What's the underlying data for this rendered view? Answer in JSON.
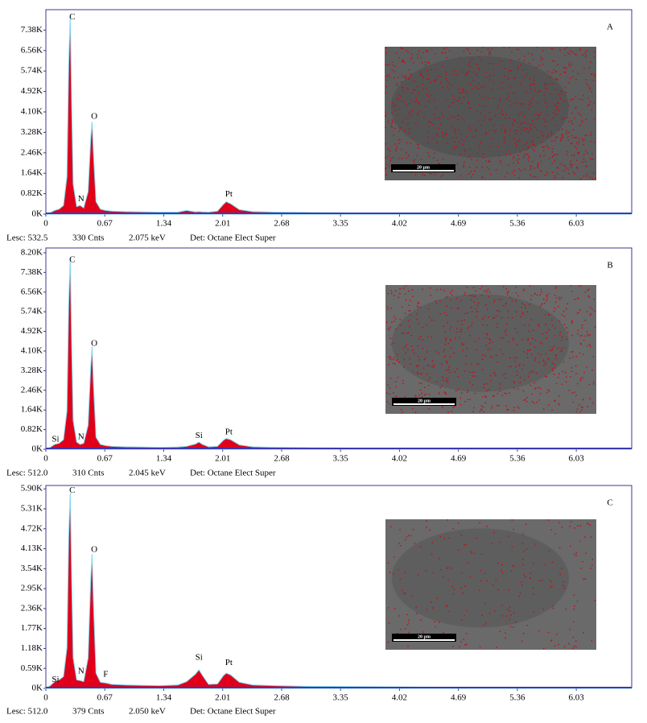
{
  "chart_data": [
    {
      "type": "area",
      "panel_label": "A",
      "xlim": [
        0,
        6.66
      ],
      "xticks": [
        0,
        0.67,
        1.34,
        2.01,
        2.68,
        3.35,
        4.02,
        4.69,
        5.36,
        6.03
      ],
      "ylim": [
        0,
        8200
      ],
      "yticks": [
        {
          "value": 0,
          "label": "0K"
        },
        {
          "value": 820,
          "label": "0.82K"
        },
        {
          "value": 1640,
          "label": "1.64K"
        },
        {
          "value": 2460,
          "label": "2.46K"
        },
        {
          "value": 3280,
          "label": "3.28K"
        },
        {
          "value": 4100,
          "label": "4.10K"
        },
        {
          "value": 4920,
          "label": "4.92K"
        },
        {
          "value": 5740,
          "label": "5.74K"
        },
        {
          "value": 6560,
          "label": "6.56K"
        },
        {
          "value": 7380,
          "label": "7.38K"
        }
      ],
      "series": [
        {
          "color": "#e0001a",
          "x": [
            0,
            0.05,
            0.1,
            0.15,
            0.2,
            0.24,
            0.26,
            0.277,
            0.29,
            0.31,
            0.35,
            0.39,
            0.43,
            0.48,
            0.51,
            0.525,
            0.54,
            0.57,
            0.62,
            0.68,
            0.75,
            0.9,
            1.1,
            1.3,
            1.5,
            1.6,
            1.7,
            1.74,
            1.78,
            1.85,
            1.95,
            2.02,
            2.05,
            2.1,
            2.2,
            2.35,
            2.6,
            3,
            3.5,
            4,
            5,
            6,
            6.66
          ],
          "values": [
            0,
            60,
            150,
            200,
            350,
            1500,
            6000,
            7950,
            5000,
            1200,
            300,
            350,
            250,
            900,
            3000,
            3710,
            2500,
            500,
            200,
            150,
            120,
            100,
            90,
            80,
            80,
            150,
            90,
            100,
            90,
            80,
            120,
            400,
            500,
            420,
            180,
            100,
            80,
            60,
            50,
            40,
            30,
            20,
            10
          ]
        }
      ],
      "annotations": [
        {
          "text": "C",
          "x": 0.3,
          "y": 7900
        },
        {
          "text": "O",
          "x": 0.55,
          "y": 3900
        },
        {
          "text": "N",
          "x": 0.4,
          "y": 600
        },
        {
          "text": "Pt",
          "x": 2.08,
          "y": 800
        }
      ],
      "inset_scale_label": "20 µm",
      "footer": [
        "Lesc: 532.5",
        "330 Cnts",
        "2.075 keV",
        "Det: Octane Elect Super"
      ]
    },
    {
      "type": "area",
      "panel_label": "B",
      "xlim": [
        0,
        6.66
      ],
      "xticks": [
        0,
        0.67,
        1.34,
        2.01,
        2.68,
        3.35,
        4.02,
        4.69,
        5.36,
        6.03
      ],
      "ylim": [
        0,
        8400
      ],
      "yticks": [
        {
          "value": 0,
          "label": "0K"
        },
        {
          "value": 820,
          "label": "0.82K"
        },
        {
          "value": 1640,
          "label": "1.64K"
        },
        {
          "value": 2460,
          "label": "2.46K"
        },
        {
          "value": 3280,
          "label": "3.28K"
        },
        {
          "value": 4100,
          "label": "4.10K"
        },
        {
          "value": 4920,
          "label": "4.92K"
        },
        {
          "value": 5740,
          "label": "5.74K"
        },
        {
          "value": 6560,
          "label": "6.56K"
        },
        {
          "value": 7380,
          "label": "7.38K"
        },
        {
          "value": 8200,
          "label": "8.20K"
        }
      ],
      "series": [
        {
          "color": "#e0001a",
          "x": [
            0,
            0.05,
            0.1,
            0.15,
            0.2,
            0.24,
            0.26,
            0.277,
            0.29,
            0.31,
            0.35,
            0.39,
            0.43,
            0.48,
            0.51,
            0.525,
            0.54,
            0.57,
            0.62,
            0.68,
            0.75,
            0.9,
            1.1,
            1.3,
            1.5,
            1.6,
            1.7,
            1.74,
            1.78,
            1.85,
            1.95,
            2.02,
            2.05,
            2.1,
            2.2,
            2.35,
            2.6,
            3,
            3.5,
            4,
            5,
            6,
            6.66
          ],
          "values": [
            0,
            80,
            200,
            250,
            400,
            1600,
            6100,
            7970,
            5000,
            1200,
            300,
            200,
            250,
            1000,
            3400,
            4280,
            2800,
            500,
            200,
            150,
            120,
            100,
            90,
            80,
            90,
            120,
            220,
            300,
            200,
            100,
            120,
            380,
            450,
            400,
            180,
            100,
            80,
            60,
            50,
            40,
            30,
            20,
            10
          ]
        }
      ],
      "annotations": [
        {
          "text": "C",
          "x": 0.3,
          "y": 7900
        },
        {
          "text": "O",
          "x": 0.55,
          "y": 4400
        },
        {
          "text": "Si",
          "x": 0.11,
          "y": 400
        },
        {
          "text": "N",
          "x": 0.4,
          "y": 500
        },
        {
          "text": "Si",
          "x": 1.74,
          "y": 550
        },
        {
          "text": "Pt",
          "x": 2.08,
          "y": 700
        }
      ],
      "inset_scale_label": "20 µm",
      "footer": [
        "Lesc: 512.0",
        "310 Cnts",
        "2.045 keV",
        "Det: Octane Elect Super"
      ]
    },
    {
      "type": "area",
      "panel_label": "C",
      "xlim": [
        0,
        6.66
      ],
      "xticks": [
        0,
        0.67,
        1.34,
        2.01,
        2.68,
        3.35,
        4.02,
        4.69,
        5.36,
        6.03
      ],
      "ylim": [
        0,
        6000
      ],
      "yticks": [
        {
          "value": 0,
          "label": "0K"
        },
        {
          "value": 590,
          "label": "0.59K"
        },
        {
          "value": 1180,
          "label": "1.18K"
        },
        {
          "value": 1770,
          "label": "1.77K"
        },
        {
          "value": 2360,
          "label": "2.36K"
        },
        {
          "value": 2950,
          "label": "2.95K"
        },
        {
          "value": 3540,
          "label": "3.54K"
        },
        {
          "value": 4130,
          "label": "4.13K"
        },
        {
          "value": 4720,
          "label": "4.72K"
        },
        {
          "value": 5310,
          "label": "5.31K"
        },
        {
          "value": 5900,
          "label": "5.90K"
        }
      ],
      "series": [
        {
          "color": "#e0001a",
          "x": [
            0,
            0.05,
            0.1,
            0.15,
            0.2,
            0.24,
            0.26,
            0.277,
            0.29,
            0.31,
            0.35,
            0.39,
            0.43,
            0.48,
            0.51,
            0.525,
            0.54,
            0.57,
            0.62,
            0.68,
            0.75,
            0.9,
            1.1,
            1.3,
            1.5,
            1.6,
            1.7,
            1.74,
            1.78,
            1.85,
            1.95,
            2.02,
            2.05,
            2.1,
            2.2,
            2.35,
            2.6,
            3,
            3.5,
            4,
            5,
            6,
            6.66
          ],
          "values": [
            0,
            80,
            200,
            250,
            350,
            1200,
            4500,
            5780,
            3700,
            900,
            250,
            230,
            200,
            900,
            3200,
            3970,
            2600,
            450,
            180,
            160,
            120,
            100,
            90,
            80,
            100,
            200,
            420,
            550,
            380,
            120,
            130,
            380,
            450,
            400,
            180,
            100,
            80,
            60,
            50,
            40,
            30,
            20,
            10
          ]
        }
      ],
      "annotations": [
        {
          "text": "C",
          "x": 0.3,
          "y": 5850
        },
        {
          "text": "O",
          "x": 0.55,
          "y": 4100
        },
        {
          "text": "Si",
          "x": 0.11,
          "y": 250
        },
        {
          "text": "N",
          "x": 0.4,
          "y": 500
        },
        {
          "text": "F",
          "x": 0.68,
          "y": 400
        },
        {
          "text": "Si",
          "x": 1.74,
          "y": 900
        },
        {
          "text": "Pt",
          "x": 2.08,
          "y": 750
        }
      ],
      "inset_scale_label": "20 µm",
      "footer": [
        "Lesc: 512.0",
        "379 Cnts",
        "2.050 keV",
        "Det: Octane Elect Super"
      ]
    }
  ]
}
